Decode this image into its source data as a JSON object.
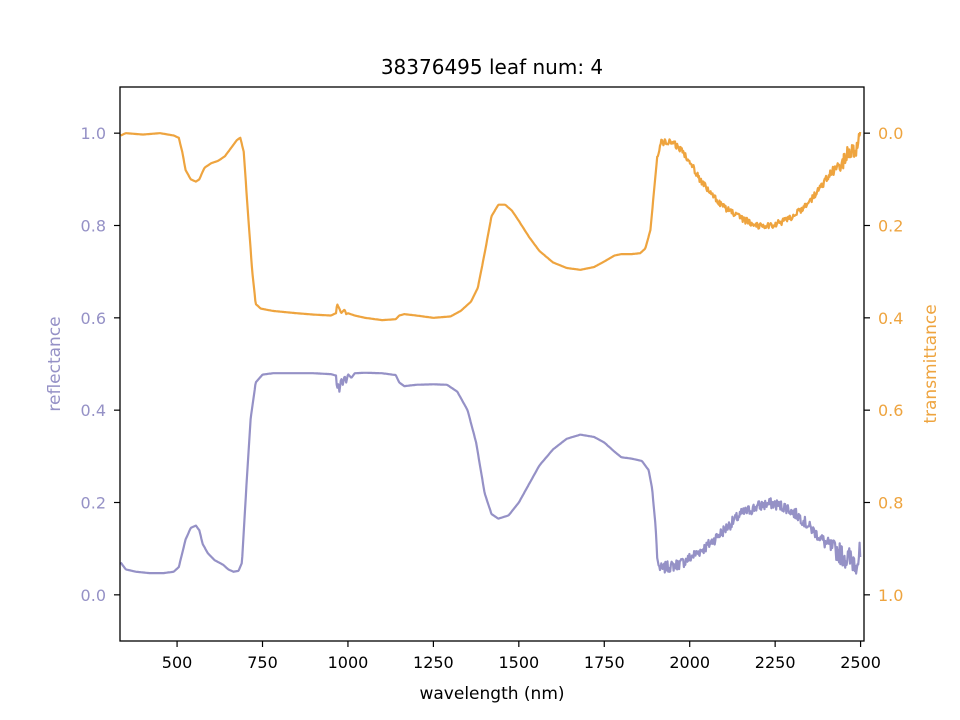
{
  "chart_data": {
    "type": "line",
    "title": "38376495 leaf num: 4",
    "xlabel": "wavelength (nm)",
    "xlim": [
      333,
      2510
    ],
    "xticks": [
      500,
      750,
      1000,
      1250,
      1500,
      1750,
      2000,
      2250,
      2500
    ],
    "left_axis": {
      "label": "reflectance",
      "color": "#9591c6",
      "lim": [
        -0.1,
        1.1
      ],
      "inverted": false,
      "ticks": [
        0.0,
        0.2,
        0.4,
        0.6,
        0.8,
        1.0
      ],
      "tick_labels": [
        "0.0",
        "0.2",
        "0.4",
        "0.6",
        "0.8",
        "1.0"
      ]
    },
    "right_axis": {
      "label": "transmittance",
      "color": "#eea43f",
      "lim": [
        -0.1,
        1.1
      ],
      "inverted": true,
      "ticks": [
        0.0,
        0.2,
        0.4,
        0.6,
        0.8,
        1.0
      ],
      "tick_labels": [
        "0.0",
        "0.2",
        "0.4",
        "0.6",
        "0.8",
        "1.0"
      ]
    },
    "series": [
      {
        "axis": "left",
        "color": "#9591c6",
        "points": [
          [
            335,
            0.07
          ],
          [
            350,
            0.055
          ],
          [
            380,
            0.05
          ],
          [
            420,
            0.047
          ],
          [
            460,
            0.047
          ],
          [
            490,
            0.05
          ],
          [
            505,
            0.06
          ],
          [
            515,
            0.09
          ],
          [
            525,
            0.12
          ],
          [
            540,
            0.145
          ],
          [
            555,
            0.15
          ],
          [
            565,
            0.14
          ],
          [
            575,
            0.11
          ],
          [
            590,
            0.09
          ],
          [
            610,
            0.075
          ],
          [
            635,
            0.065
          ],
          [
            650,
            0.055
          ],
          [
            665,
            0.05
          ],
          [
            680,
            0.052
          ],
          [
            690,
            0.07
          ],
          [
            700,
            0.2
          ],
          [
            715,
            0.38
          ],
          [
            730,
            0.46
          ],
          [
            750,
            0.477
          ],
          [
            780,
            0.48
          ],
          [
            850,
            0.48
          ],
          [
            900,
            0.48
          ],
          [
            950,
            0.478
          ],
          [
            965,
            0.475
          ],
          [
            968,
            0.445
          ],
          [
            972,
            0.46
          ],
          [
            975,
            0.44
          ],
          [
            980,
            0.47
          ],
          [
            985,
            0.455
          ],
          [
            990,
            0.475
          ],
          [
            995,
            0.46
          ],
          [
            1000,
            0.478
          ],
          [
            1010,
            0.47
          ],
          [
            1020,
            0.48
          ],
          [
            1050,
            0.481
          ],
          [
            1100,
            0.48
          ],
          [
            1140,
            0.476
          ],
          [
            1150,
            0.46
          ],
          [
            1165,
            0.452
          ],
          [
            1200,
            0.455
          ],
          [
            1250,
            0.456
          ],
          [
            1290,
            0.455
          ],
          [
            1320,
            0.44
          ],
          [
            1350,
            0.4
          ],
          [
            1375,
            0.33
          ],
          [
            1400,
            0.22
          ],
          [
            1420,
            0.175
          ],
          [
            1440,
            0.165
          ],
          [
            1470,
            0.172
          ],
          [
            1500,
            0.2
          ],
          [
            1530,
            0.24
          ],
          [
            1560,
            0.28
          ],
          [
            1600,
            0.315
          ],
          [
            1640,
            0.338
          ],
          [
            1680,
            0.347
          ],
          [
            1720,
            0.342
          ],
          [
            1750,
            0.33
          ],
          [
            1780,
            0.31
          ],
          [
            1800,
            0.298
          ],
          [
            1830,
            0.295
          ],
          [
            1860,
            0.29
          ],
          [
            1880,
            0.27
          ],
          [
            1890,
            0.23
          ],
          [
            1900,
            0.15
          ],
          [
            1905,
            0.08
          ],
          [
            1910,
            0.06
          ],
          [
            1920,
            0.055
          ],
          [
            1930,
            0.06
          ],
          [
            1950,
            0.062
          ],
          [
            1980,
            0.07
          ],
          [
            2000,
            0.08
          ],
          [
            2050,
            0.105
          ],
          [
            2100,
            0.14
          ],
          [
            2150,
            0.175
          ],
          [
            2200,
            0.192
          ],
          [
            2240,
            0.198
          ],
          [
            2280,
            0.19
          ],
          [
            2320,
            0.17
          ],
          [
            2360,
            0.14
          ],
          [
            2400,
            0.11
          ],
          [
            2440,
            0.09
          ],
          [
            2470,
            0.075
          ],
          [
            2500,
            0.08
          ]
        ],
        "noise_from": 1910,
        "noise_amp": 0.012,
        "noise_grow_from": 2380,
        "noise_amp_tail": 0.035
      },
      {
        "axis": "right",
        "color": "#eea43f",
        "points": [
          [
            335,
            0.005
          ],
          [
            350,
            0.0
          ],
          [
            400,
            0.003
          ],
          [
            450,
            0.0
          ],
          [
            490,
            0.005
          ],
          [
            505,
            0.01
          ],
          [
            515,
            0.04
          ],
          [
            525,
            0.08
          ],
          [
            540,
            0.1
          ],
          [
            555,
            0.105
          ],
          [
            565,
            0.1
          ],
          [
            580,
            0.075
          ],
          [
            600,
            0.065
          ],
          [
            620,
            0.06
          ],
          [
            640,
            0.05
          ],
          [
            660,
            0.03
          ],
          [
            675,
            0.015
          ],
          [
            685,
            0.01
          ],
          [
            695,
            0.04
          ],
          [
            710,
            0.2
          ],
          [
            720,
            0.3
          ],
          [
            730,
            0.37
          ],
          [
            745,
            0.38
          ],
          [
            780,
            0.385
          ],
          [
            850,
            0.39
          ],
          [
            900,
            0.393
          ],
          [
            950,
            0.395
          ],
          [
            965,
            0.39
          ],
          [
            968,
            0.37
          ],
          [
            975,
            0.38
          ],
          [
            980,
            0.39
          ],
          [
            990,
            0.382
          ],
          [
            995,
            0.392
          ],
          [
            1000,
            0.39
          ],
          [
            1020,
            0.395
          ],
          [
            1050,
            0.4
          ],
          [
            1100,
            0.405
          ],
          [
            1140,
            0.403
          ],
          [
            1150,
            0.395
          ],
          [
            1165,
            0.392
          ],
          [
            1200,
            0.395
          ],
          [
            1250,
            0.4
          ],
          [
            1300,
            0.397
          ],
          [
            1330,
            0.385
          ],
          [
            1360,
            0.365
          ],
          [
            1380,
            0.335
          ],
          [
            1400,
            0.26
          ],
          [
            1420,
            0.18
          ],
          [
            1440,
            0.155
          ],
          [
            1460,
            0.155
          ],
          [
            1480,
            0.168
          ],
          [
            1500,
            0.19
          ],
          [
            1530,
            0.225
          ],
          [
            1560,
            0.255
          ],
          [
            1600,
            0.28
          ],
          [
            1640,
            0.292
          ],
          [
            1680,
            0.296
          ],
          [
            1720,
            0.29
          ],
          [
            1750,
            0.278
          ],
          [
            1780,
            0.265
          ],
          [
            1800,
            0.262
          ],
          [
            1830,
            0.262
          ],
          [
            1855,
            0.26
          ],
          [
            1870,
            0.25
          ],
          [
            1885,
            0.21
          ],
          [
            1895,
            0.13
          ],
          [
            1905,
            0.05
          ],
          [
            1915,
            0.02
          ],
          [
            1950,
            0.02
          ],
          [
            1980,
            0.04
          ],
          [
            2000,
            0.06
          ],
          [
            2030,
            0.1
          ],
          [
            2060,
            0.13
          ],
          [
            2100,
            0.16
          ],
          [
            2150,
            0.185
          ],
          [
            2200,
            0.2
          ],
          [
            2240,
            0.2
          ],
          [
            2280,
            0.19
          ],
          [
            2320,
            0.17
          ],
          [
            2360,
            0.14
          ],
          [
            2400,
            0.1
          ],
          [
            2440,
            0.07
          ],
          [
            2470,
            0.04
          ],
          [
            2500,
            0.02
          ]
        ],
        "noise_from": 1905,
        "noise_amp": 0.007,
        "noise_grow_from": 2380,
        "noise_amp_tail": 0.025
      }
    ]
  }
}
